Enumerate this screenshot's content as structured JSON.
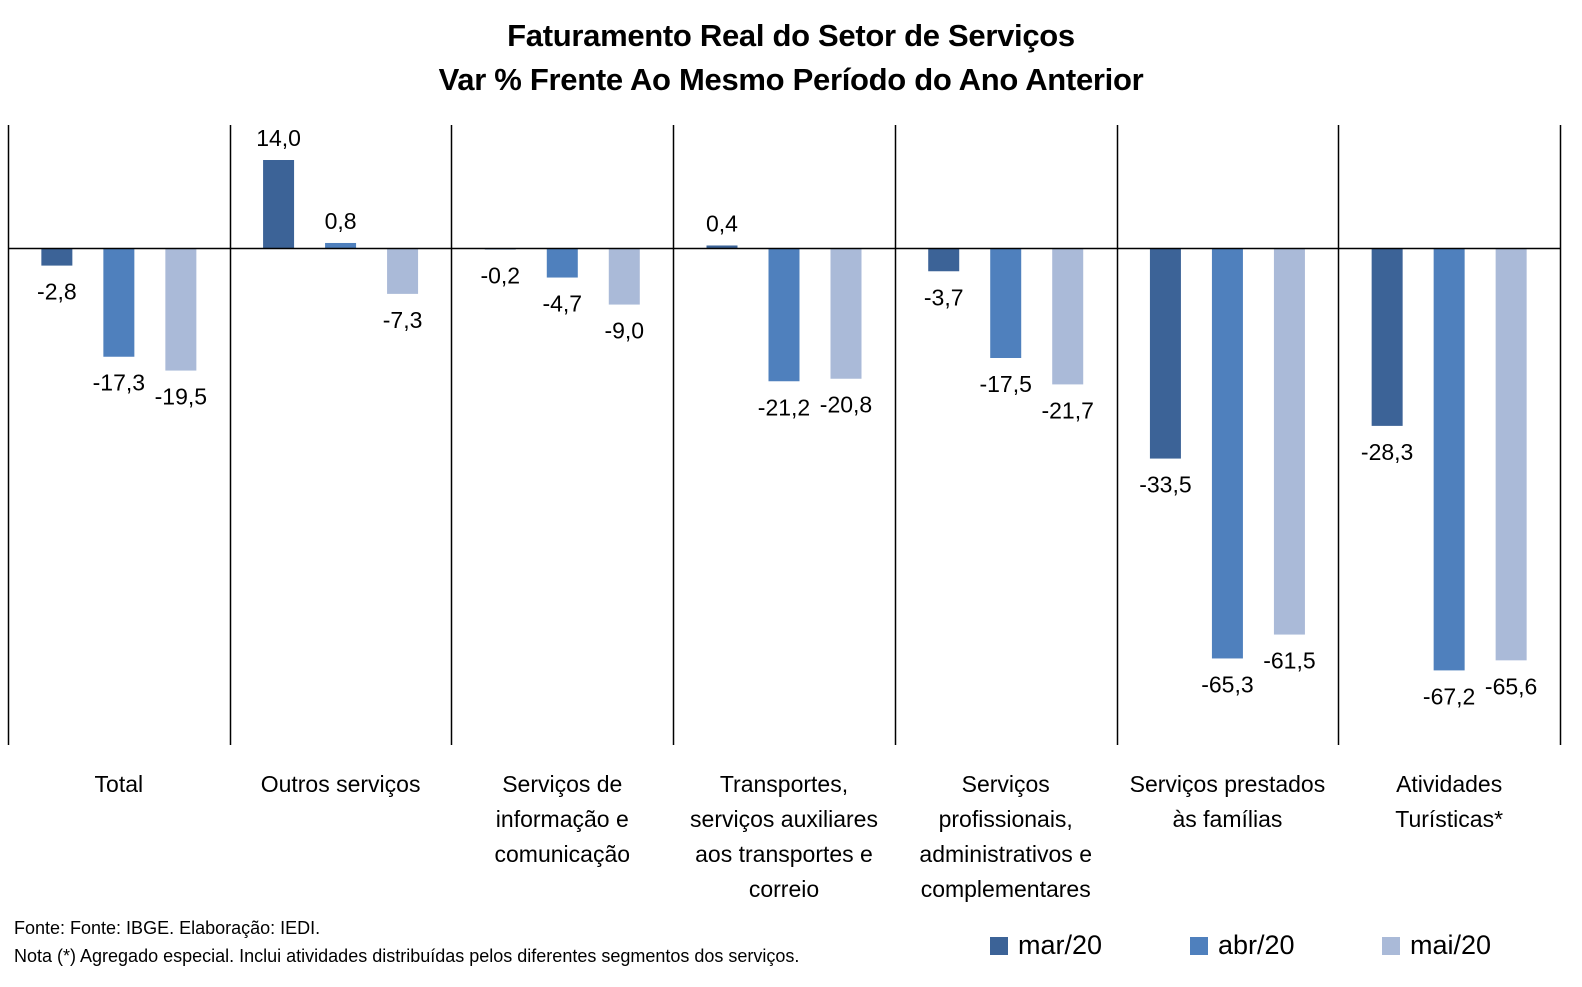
{
  "chart_data": {
    "type": "bar",
    "title": "Faturamento Real do Setor de Serviços",
    "subtitle": "Var % Frente Ao Mesmo Período do Ano Anterior",
    "xlabel": "",
    "ylabel": "",
    "ylim": [
      -70,
      20
    ],
    "grid": false,
    "legend_position": "bottom-right",
    "categories": [
      [
        "Total"
      ],
      [
        "Outros serviços"
      ],
      [
        "Serviços de",
        "informação e",
        "comunicação"
      ],
      [
        "Transportes,",
        "serviços auxiliares",
        "aos transportes e",
        "correio"
      ],
      [
        "Serviços",
        "profissionais,",
        "administrativos e",
        "complementares"
      ],
      [
        "Serviços prestados",
        "às famílias"
      ],
      [
        "Atividades",
        "Turísticas*"
      ]
    ],
    "series": [
      {
        "name": "mar/20",
        "color": "#3c6397",
        "values": [
          -2.8,
          14.0,
          -0.2,
          0.4,
          -3.7,
          -33.5,
          -28.3
        ],
        "labels": [
          "-2,8",
          "14,0",
          "-0,2",
          "0,4",
          "-3,7",
          "-33,5",
          "-28,3"
        ]
      },
      {
        "name": "abr/20",
        "color": "#4f80bd",
        "values": [
          -17.3,
          0.8,
          -4.7,
          -21.2,
          -17.5,
          -65.3,
          -67.2
        ],
        "labels": [
          "-17,3",
          "0,8",
          "-4,7",
          "-21,2",
          "-17,5",
          "-65,3",
          "-67,2"
        ]
      },
      {
        "name": "mai/20",
        "color": "#aabad8",
        "values": [
          -19.5,
          -7.3,
          -9.0,
          -20.8,
          -21.7,
          -61.5,
          -65.6
        ],
        "labels": [
          "-19,5",
          "-7,3",
          "-9,0",
          "-20,8",
          "-21,7",
          "-61,5",
          "-65,6"
        ]
      }
    ],
    "footnotes": [
      "Fonte: Fonte: IBGE. Elaboração: IEDI.",
      "Nota (*) Agregado especial. Inclui atividades distribuídas pelos diferentes segmentos dos serviços."
    ]
  }
}
